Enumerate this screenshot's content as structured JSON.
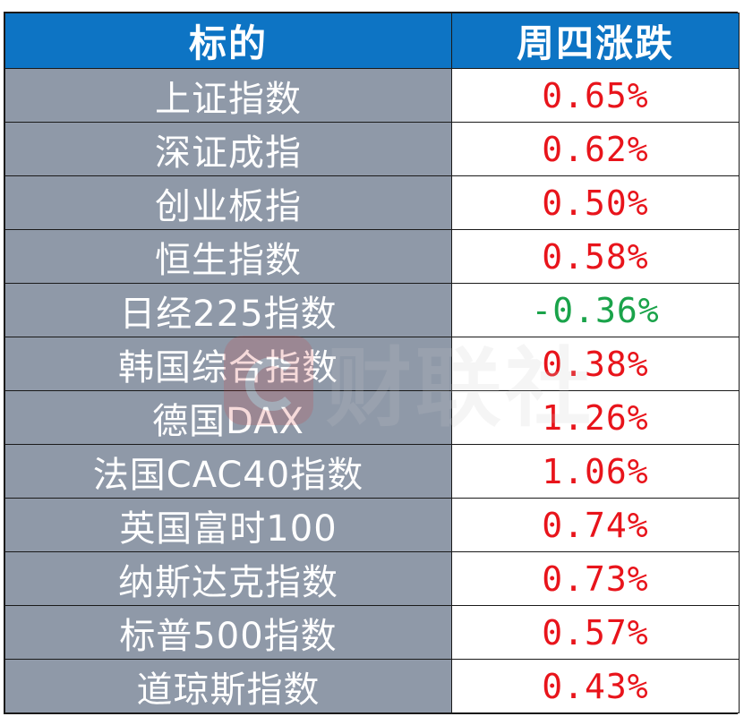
{
  "chart_data": {
    "type": "table",
    "columns": [
      "标的",
      "周四涨跌"
    ],
    "rows": [
      {
        "name": "上证指数",
        "change": "0.65%",
        "value": 0.65
      },
      {
        "name": "深证成指",
        "change": "0.62%",
        "value": 0.62
      },
      {
        "name": "创业板指",
        "change": "0.50%",
        "value": 0.5
      },
      {
        "name": "恒生指数",
        "change": "0.58%",
        "value": 0.58
      },
      {
        "name": "日经225指数",
        "change": "-0.36%",
        "value": -0.36
      },
      {
        "name": "韩国综合指数",
        "change": "0.38%",
        "value": 0.38
      },
      {
        "name": "德国DAX",
        "change": "1.26%",
        "value": 1.26
      },
      {
        "name": "法国CAC40指数",
        "change": "1.06%",
        "value": 1.06
      },
      {
        "name": "英国富时100",
        "change": "0.74%",
        "value": 0.74
      },
      {
        "name": "纳斯达克指数",
        "change": "0.73%",
        "value": 0.73
      },
      {
        "name": "标普500指数",
        "change": "0.57%",
        "value": 0.57
      },
      {
        "name": "道琼斯指数",
        "change": "0.43%",
        "value": 0.43
      }
    ]
  },
  "watermark": {
    "text": "财联社"
  },
  "colors": {
    "header_bg": "#0d74c4",
    "name_bg": "#8f99a8",
    "up": "#e8141b",
    "down": "#1aa34a"
  }
}
